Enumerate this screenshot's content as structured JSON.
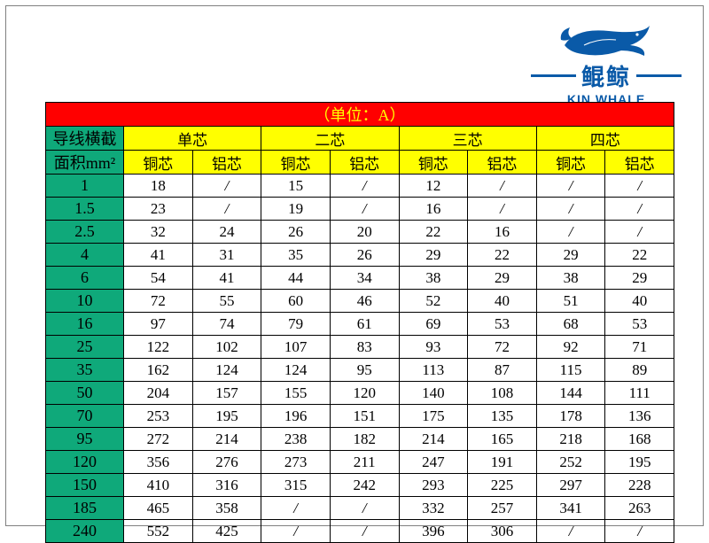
{
  "logo": {
    "cn": "鲲鲸",
    "en": "KIN WHALE",
    "brand_color": "#0a5aa8"
  },
  "table": {
    "title": "（单位：A）",
    "row_header_line1": "导线横截",
    "row_header_line2": "面积mm²",
    "core_groups": [
      "单芯",
      "二芯",
      "三芯",
      "四芯"
    ],
    "subcols": [
      "铜芯",
      "铝芯"
    ],
    "colors": {
      "title_bg": "#ff0000",
      "title_fg": "#ffff00",
      "header_bg": "#ffff00",
      "rowhdr_bg": "#0fa97a",
      "cell_bg": "#ffffff",
      "border": "#000000"
    },
    "sizes": [
      "1",
      "1.5",
      "2.5",
      "4",
      "6",
      "10",
      "16",
      "25",
      "35",
      "50",
      "70",
      "95",
      "120",
      "150",
      "185",
      "240"
    ],
    "data": [
      [
        "18",
        "/",
        "15",
        "/",
        "12",
        "/",
        "/",
        "/"
      ],
      [
        "23",
        "/",
        "19",
        "/",
        "16",
        "/",
        "/",
        "/"
      ],
      [
        "32",
        "24",
        "26",
        "20",
        "22",
        "16",
        "/",
        "/"
      ],
      [
        "41",
        "31",
        "35",
        "26",
        "29",
        "22",
        "29",
        "22"
      ],
      [
        "54",
        "41",
        "44",
        "34",
        "38",
        "29",
        "38",
        "29"
      ],
      [
        "72",
        "55",
        "60",
        "46",
        "52",
        "40",
        "51",
        "40"
      ],
      [
        "97",
        "74",
        "79",
        "61",
        "69",
        "53",
        "68",
        "53"
      ],
      [
        "122",
        "102",
        "107",
        "83",
        "93",
        "72",
        "92",
        "71"
      ],
      [
        "162",
        "124",
        "124",
        "95",
        "113",
        "87",
        "115",
        "89"
      ],
      [
        "204",
        "157",
        "155",
        "120",
        "140",
        "108",
        "144",
        "111"
      ],
      [
        "253",
        "195",
        "196",
        "151",
        "175",
        "135",
        "178",
        "136"
      ],
      [
        "272",
        "214",
        "238",
        "182",
        "214",
        "165",
        "218",
        "168"
      ],
      [
        "356",
        "276",
        "273",
        "211",
        "247",
        "191",
        "252",
        "195"
      ],
      [
        "410",
        "316",
        "315",
        "242",
        "293",
        "225",
        "297",
        "228"
      ],
      [
        "465",
        "358",
        "/",
        "/",
        "332",
        "257",
        "341",
        "263"
      ],
      [
        "552",
        "425",
        "/",
        "/",
        "396",
        "306",
        "/",
        "/"
      ]
    ]
  }
}
